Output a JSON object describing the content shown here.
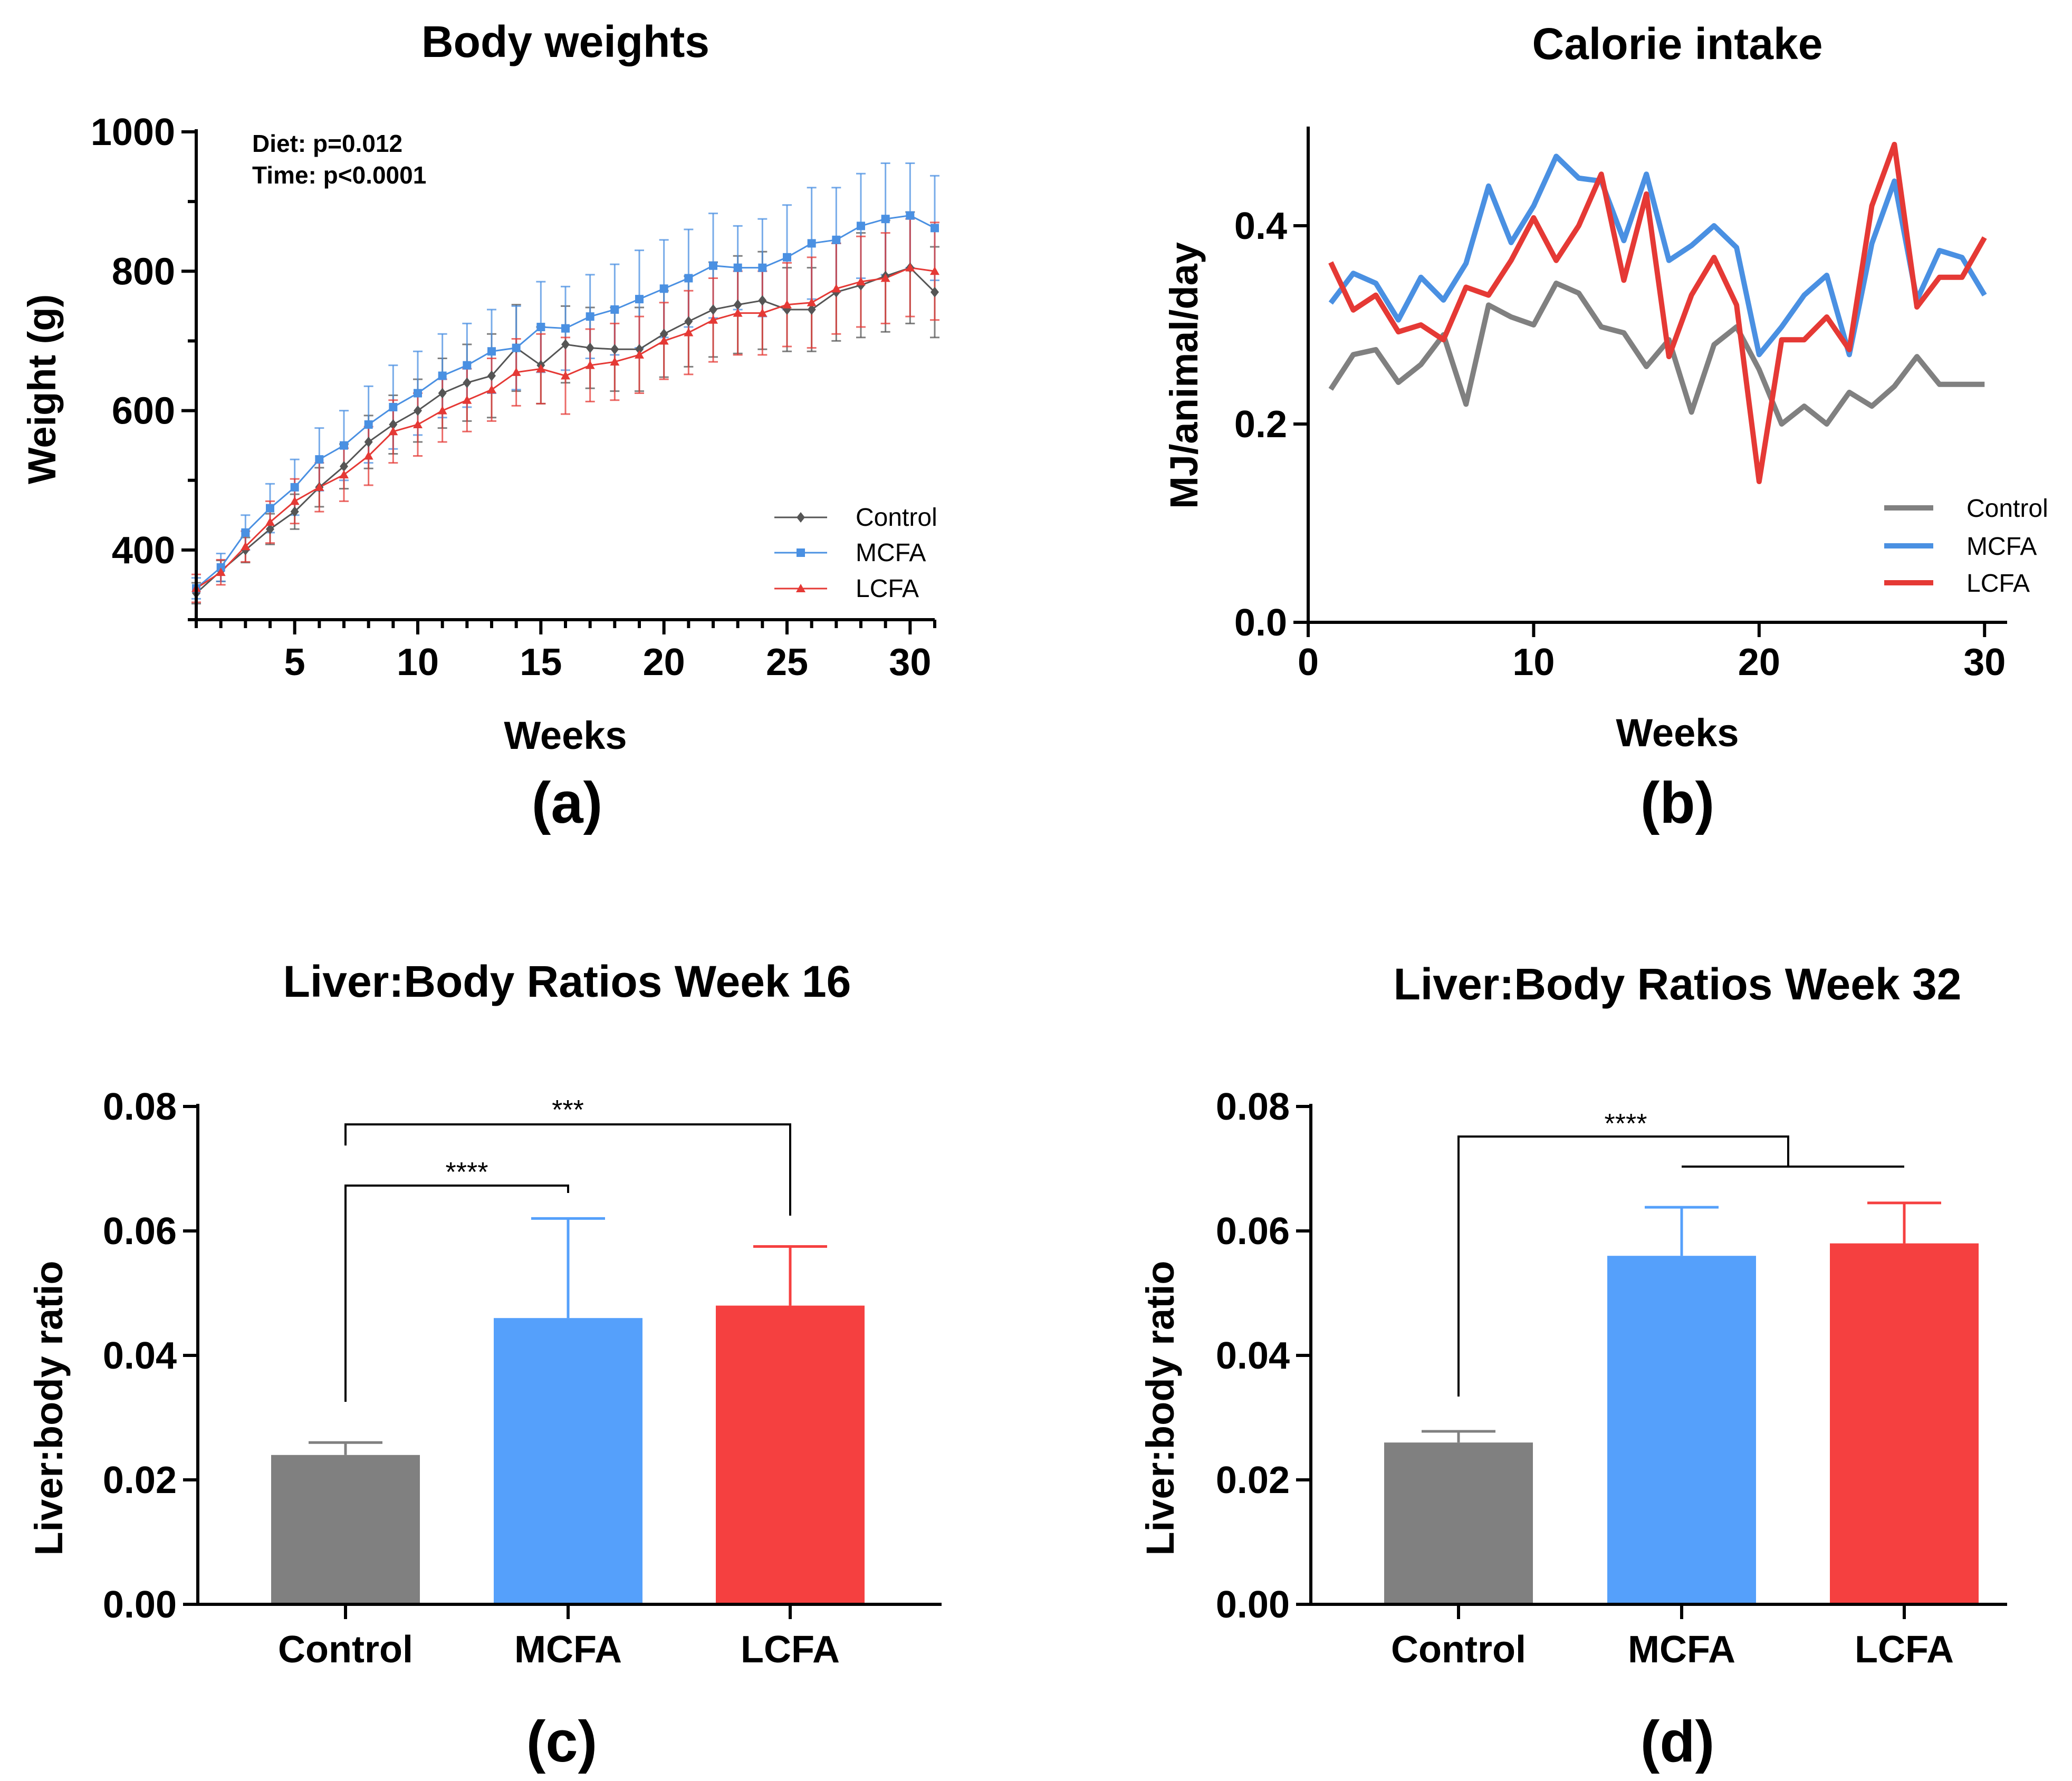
{
  "chart_data": [
    {
      "id": "a",
      "panel": "(a)",
      "type": "line",
      "title": "Body weights",
      "xlabel": "Weeks",
      "ylabel": "Weight (g)",
      "xlim": [
        1,
        31
      ],
      "ylim": [
        300,
        1000
      ],
      "xticks": [
        5,
        10,
        15,
        20,
        25,
        30
      ],
      "yticks": [
        400,
        600,
        800,
        1000
      ],
      "annotations": [
        "Diet: p=0.012",
        "Time: p<0.0001"
      ],
      "legend_position": "bottom-right",
      "x": [
        1,
        2,
        3,
        4,
        5,
        6,
        7,
        8,
        9,
        10,
        11,
        12,
        13,
        14,
        15,
        16,
        17,
        18,
        19,
        20,
        21,
        22,
        23,
        24,
        25,
        26,
        27,
        28,
        29,
        30,
        31
      ],
      "series": [
        {
          "name": "Control",
          "color": "#555555",
          "marker": "diamond",
          "values": [
            338,
            370,
            400,
            430,
            455,
            490,
            520,
            555,
            580,
            600,
            625,
            640,
            650,
            690,
            665,
            695,
            690,
            688,
            688,
            710,
            728,
            745,
            752,
            758,
            745,
            745,
            770,
            780,
            793,
            805,
            770
          ],
          "errors": [
            15,
            15,
            18,
            22,
            25,
            28,
            32,
            38,
            42,
            45,
            50,
            55,
            60,
            62,
            55,
            55,
            58,
            60,
            60,
            62,
            65,
            68,
            70,
            70,
            60,
            60,
            70,
            75,
            80,
            80,
            65
          ]
        },
        {
          "name": "MCFA",
          "color": "#4A90E2",
          "marker": "square",
          "values": [
            345,
            375,
            425,
            460,
            490,
            530,
            550,
            580,
            605,
            625,
            650,
            665,
            685,
            690,
            720,
            718,
            735,
            745,
            760,
            775,
            790,
            808,
            805,
            805,
            820,
            840,
            845,
            865,
            875,
            880,
            862
          ],
          "errors": [
            15,
            20,
            25,
            35,
            40,
            45,
            50,
            55,
            60,
            60,
            60,
            60,
            60,
            60,
            65,
            60,
            60,
            65,
            70,
            70,
            70,
            75,
            60,
            70,
            75,
            80,
            75,
            75,
            80,
            75,
            75
          ]
        },
        {
          "name": "LCFA",
          "color": "#E53935",
          "marker": "triangle",
          "values": [
            345,
            368,
            405,
            440,
            470,
            490,
            508,
            535,
            570,
            580,
            600,
            615,
            630,
            655,
            660,
            650,
            665,
            670,
            680,
            700,
            712,
            730,
            740,
            740,
            752,
            755,
            775,
            785,
            790,
            805,
            800
          ],
          "errors": [
            20,
            18,
            22,
            30,
            32,
            35,
            38,
            42,
            45,
            45,
            45,
            45,
            45,
            48,
            50,
            55,
            52,
            55,
            55,
            55,
            60,
            60,
            60,
            60,
            60,
            65,
            65,
            65,
            65,
            70,
            70
          ]
        }
      ]
    },
    {
      "id": "b",
      "panel": "(b)",
      "type": "line",
      "title": "Calorie intake",
      "xlabel": "Weeks",
      "ylabel": "MJ/animal/day",
      "xlim": [
        0,
        31
      ],
      "ylim": [
        0,
        0.5
      ],
      "xticks": [
        0,
        10,
        20,
        30
      ],
      "yticks": [
        "0.0",
        "0.2",
        "0.4"
      ],
      "ytick_values": [
        0,
        0.2,
        0.4
      ],
      "legend_position": "bottom-right",
      "x": [
        1,
        2,
        3,
        4,
        5,
        6,
        7,
        8,
        9,
        10,
        11,
        12,
        13,
        14,
        15,
        16,
        17,
        18,
        19,
        20,
        21,
        22,
        23,
        24,
        25,
        26,
        27,
        28,
        29,
        30
      ],
      "series": [
        {
          "name": "Control",
          "color": "#808080",
          "values": [
            0.235,
            0.27,
            0.275,
            0.242,
            0.26,
            0.29,
            0.22,
            0.32,
            0.308,
            0.3,
            0.342,
            0.332,
            0.298,
            0.292,
            0.258,
            0.285,
            0.212,
            0.28,
            0.298,
            0.255,
            0.2,
            0.218,
            0.2,
            0.232,
            0.218,
            0.238,
            0.268,
            0.24,
            0.24,
            0.24
          ]
        },
        {
          "name": "MCFA",
          "color": "#4A90E2",
          "values": [
            0.322,
            0.352,
            0.342,
            0.305,
            0.348,
            0.325,
            0.362,
            0.44,
            0.383,
            0.42,
            0.47,
            0.448,
            0.445,
            0.385,
            0.452,
            0.365,
            0.38,
            0.4,
            0.378,
            0.27,
            0.298,
            0.33,
            0.35,
            0.27,
            0.382,
            0.445,
            0.325,
            0.375,
            0.368,
            0.33
          ]
        },
        {
          "name": "LCFA",
          "color": "#E53935",
          "values": [
            0.363,
            0.315,
            0.33,
            0.293,
            0.3,
            0.285,
            0.338,
            0.33,
            0.365,
            0.408,
            0.365,
            0.4,
            0.452,
            0.345,
            0.432,
            0.268,
            0.33,
            0.368,
            0.32,
            0.142,
            0.285,
            0.285,
            0.308,
            0.275,
            0.42,
            0.482,
            0.318,
            0.348,
            0.348,
            0.388
          ]
        }
      ]
    },
    {
      "id": "c",
      "panel": "(c)",
      "type": "bar",
      "title": "Liver:Body Ratios Week 16",
      "xlabel": "",
      "ylabel": "Liver:body ratio",
      "categories": [
        "Control",
        "MCFA",
        "LCFA"
      ],
      "values": [
        0.024,
        0.046,
        0.048
      ],
      "errors": [
        0.002,
        0.016,
        0.0095
      ],
      "colors": [
        "#808080",
        "#55A0FB",
        "#F54040"
      ],
      "error_colors": [
        "#808080",
        "#55A0FB",
        "#F54040"
      ],
      "ylim": [
        0,
        0.08
      ],
      "yticks": [
        "0.00",
        "0.02",
        "0.04",
        "0.06",
        "0.08"
      ],
      "ytick_values": [
        0,
        0.02,
        0.04,
        0.06,
        0.08
      ],
      "significance": [
        {
          "from": 0,
          "to": 2,
          "label": "***"
        },
        {
          "from": 0,
          "to": 1,
          "label": "****"
        }
      ]
    },
    {
      "id": "d",
      "panel": "(d)",
      "type": "bar",
      "title": "Liver:Body Ratios Week 32",
      "xlabel": "",
      "ylabel": "Liver:body ratio",
      "categories": [
        "Control",
        "MCFA",
        "LCFA"
      ],
      "values": [
        0.026,
        0.056,
        0.058
      ],
      "errors": [
        0.0018,
        0.0078,
        0.0065
      ],
      "colors": [
        "#808080",
        "#55A0FB",
        "#F54040"
      ],
      "error_colors": [
        "#808080",
        "#55A0FB",
        "#F54040"
      ],
      "ylim": [
        0,
        0.08
      ],
      "yticks": [
        "0.00",
        "0.02",
        "0.04",
        "0.06",
        "0.08"
      ],
      "ytick_values": [
        0,
        0.02,
        0.04,
        0.06,
        0.08
      ],
      "significance": [
        {
          "from": 0,
          "to_group": [
            1,
            2
          ],
          "label": "****"
        }
      ]
    }
  ]
}
